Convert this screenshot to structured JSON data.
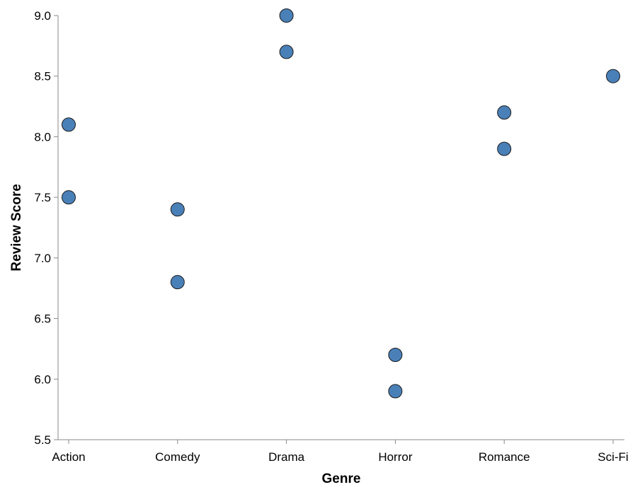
{
  "chart_data": {
    "type": "scatter",
    "title": "",
    "xlabel": "Genre",
    "ylabel": "Review Score",
    "categories": [
      "Action",
      "Comedy",
      "Drama",
      "Horror",
      "Romance",
      "Sci-Fi"
    ],
    "ylim": [
      5.5,
      9.0
    ],
    "yticks": [
      "5.5",
      "6.0",
      "6.5",
      "7.0",
      "7.5",
      "8.0",
      "8.5",
      "9.0"
    ],
    "grid": false,
    "legend": "none",
    "point_color": "#4a80b8",
    "points": [
      {
        "x": "Action",
        "y": 8.1
      },
      {
        "x": "Action",
        "y": 7.5
      },
      {
        "x": "Comedy",
        "y": 7.4
      },
      {
        "x": "Comedy",
        "y": 6.8
      },
      {
        "x": "Drama",
        "y": 9.0
      },
      {
        "x": "Drama",
        "y": 8.7
      },
      {
        "x": "Horror",
        "y": 6.2
      },
      {
        "x": "Horror",
        "y": 5.9
      },
      {
        "x": "Romance",
        "y": 8.2
      },
      {
        "x": "Romance",
        "y": 7.9
      },
      {
        "x": "Sci-Fi",
        "y": 8.5
      }
    ]
  }
}
